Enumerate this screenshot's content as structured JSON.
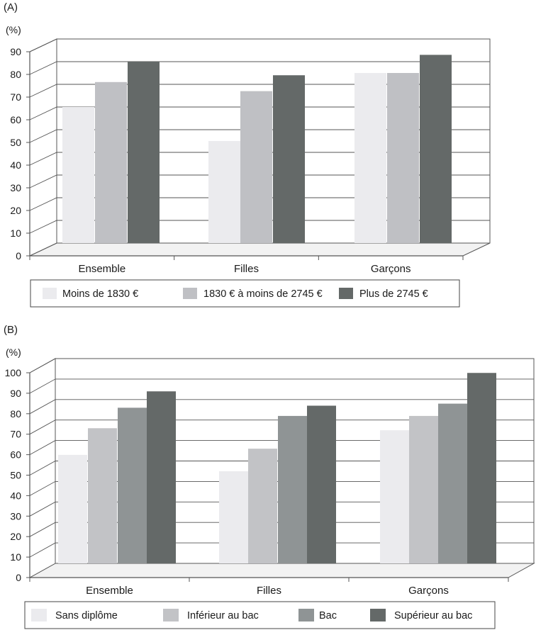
{
  "colors": {
    "panel_a": [
      "#ebebee",
      "#bfc0c4",
      "#646968"
    ],
    "panel_b": [
      "#ebebee",
      "#c2c3c6",
      "#8f9495",
      "#646968"
    ],
    "grid": "#555555",
    "wall": "#ffffff"
  },
  "chart_data": [
    {
      "type": "bar",
      "panel_label": "(A)",
      "unit_label": "(%)",
      "categories": [
        "Ensemble",
        "Filles",
        "Garçons"
      ],
      "series": [
        {
          "name": "Moins de 1830  €",
          "values": [
            60,
            45,
            75
          ]
        },
        {
          "name": "1830 € à moins de 2745 €",
          "values": [
            71,
            67,
            75
          ]
        },
        {
          "name": "Plus de 2745 €",
          "values": [
            80,
            74,
            83
          ]
        }
      ],
      "yticks": [
        "0",
        "10",
        "20",
        "30",
        "40",
        "50",
        "60",
        "70",
        "80",
        "90"
      ],
      "ylim": [
        0,
        90
      ],
      "grid": true,
      "legend_position": "bottom"
    },
    {
      "type": "bar",
      "panel_label": "(B)",
      "unit_label": "(%)",
      "categories": [
        "Ensemble",
        "Filles",
        "Garçons"
      ],
      "series": [
        {
          "name": "Sans diplôme",
          "values": [
            53,
            45,
            65
          ]
        },
        {
          "name": "Inférieur au bac",
          "values": [
            66,
            56,
            72
          ]
        },
        {
          "name": "Bac",
          "values": [
            76,
            72,
            78
          ]
        },
        {
          "name": "Supérieur au bac",
          "values": [
            84,
            77,
            93
          ]
        }
      ],
      "yticks": [
        "0",
        "10",
        "20",
        "30",
        "40",
        "50",
        "60",
        "70",
        "80",
        "90",
        "100"
      ],
      "ylim": [
        0,
        100
      ],
      "grid": true,
      "legend_position": "bottom"
    }
  ]
}
